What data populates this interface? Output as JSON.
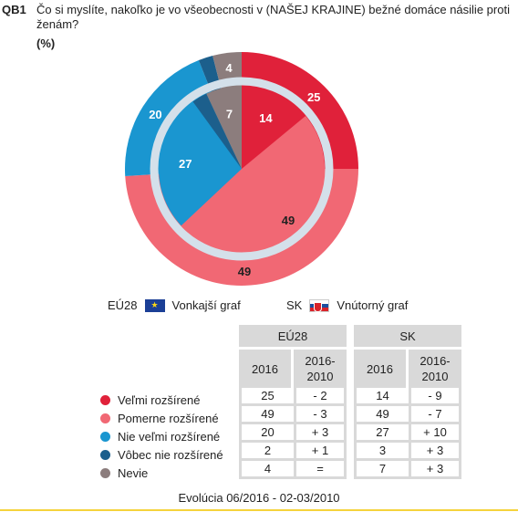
{
  "question": {
    "code": "QB1",
    "text": "Čo si myslíte, nakoľko je vo všeobecnosti v (NAŠEJ KRAJINE) bežné domáce násilie proti ženám?",
    "unit": "(%)"
  },
  "legend": {
    "outer_region": "EÚ28",
    "outer_label": "Vonkajší graf",
    "inner_region": "SK",
    "inner_label": "Vnútorný graf"
  },
  "table_headers": {
    "eu": "EÚ28",
    "sk": "SK",
    "year": "2016",
    "change": "2016-\n2010"
  },
  "footer": "Evolúcia 06/2016 - 02-03/2010",
  "colors": {
    "very": "#e0213a",
    "fairly": "#f16874",
    "notvery": "#1a96d0",
    "notatall": "#1c5f8c",
    "dk": "#8c7d7d",
    "ring": "#d4e0ea"
  },
  "chart_data": {
    "type": "pie",
    "categories": [
      "Veľmi rozšírené",
      "Pomerne rozšírené",
      "Nie veľmi rozšírené",
      "Vôbec nie rozšírené",
      "Nevie"
    ],
    "series": [
      {
        "name": "EÚ28",
        "values": [
          25,
          49,
          20,
          2,
          4
        ],
        "change": [
          "- 2",
          "- 3",
          "+ 3",
          "+ 1",
          "="
        ]
      },
      {
        "name": "SK",
        "values": [
          14,
          49,
          27,
          3,
          7
        ],
        "change": [
          "- 9",
          "- 7",
          "+ 10",
          "+ 3",
          "+ 3"
        ]
      }
    ]
  }
}
